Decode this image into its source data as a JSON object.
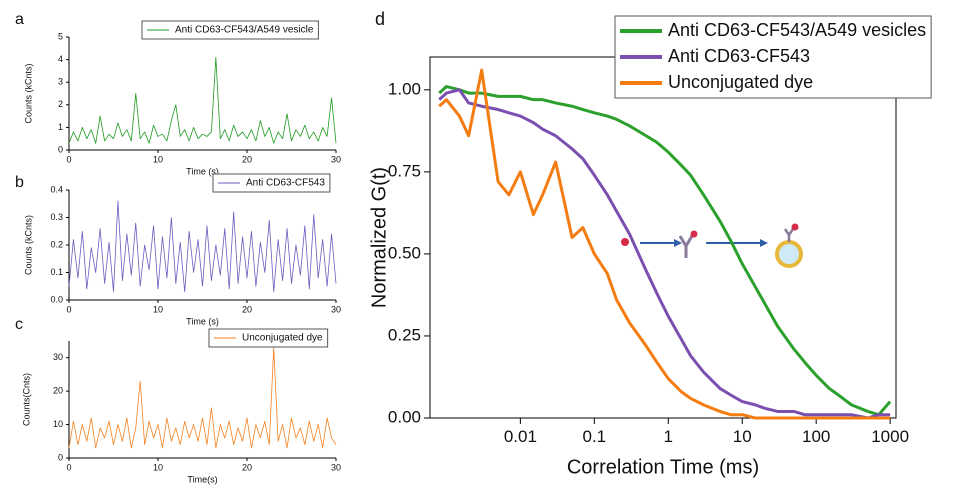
{
  "chart_data": [
    {
      "type": "line",
      "panel_label": "a",
      "x_label": "Time (s)",
      "y_label": "Counts (kCnts)",
      "xlim": [
        0,
        30
      ],
      "xticks": [
        0,
        10,
        20,
        30
      ],
      "ylim": [
        0,
        5
      ],
      "yticks": [
        0,
        1,
        2,
        3,
        4,
        5
      ],
      "x": [
        0,
        0.5,
        1,
        1.5,
        2,
        2.5,
        3,
        3.5,
        4,
        4.5,
        5,
        5.5,
        6,
        6.5,
        7,
        7.5,
        8,
        8.5,
        9,
        9.5,
        10,
        10.5,
        11,
        11.5,
        12,
        12.5,
        13,
        13.5,
        14,
        14.5,
        15,
        15.5,
        16,
        16.5,
        17,
        17.5,
        18,
        18.5,
        19,
        19.5,
        20,
        20.5,
        21,
        21.5,
        22,
        22.5,
        23,
        23.5,
        24,
        24.5,
        25,
        25.5,
        26,
        26.5,
        27,
        27.5,
        28,
        28.5,
        29,
        29.5,
        30
      ],
      "series": [
        {
          "name": "Anti CD63-CF543/A549 vesicle",
          "color": "#1f9a1f",
          "values": [
            0.3,
            0.8,
            0.4,
            1.0,
            0.5,
            0.9,
            0.3,
            1.5,
            0.4,
            0.7,
            0.5,
            1.2,
            0.6,
            0.9,
            0.4,
            2.5,
            0.5,
            0.8,
            0.3,
            1.1,
            0.6,
            0.7,
            0.4,
            1.3,
            2.0,
            0.6,
            0.9,
            0.4,
            1.0,
            0.5,
            0.7,
            0.6,
            0.8,
            4.1,
            0.5,
            0.9,
            0.4,
            1.1,
            0.6,
            0.8,
            0.5,
            0.9,
            0.4,
            1.3,
            0.6,
            1.0,
            0.3,
            0.8,
            0.5,
            1.6,
            0.4,
            0.9,
            0.6,
            1.1,
            0.5,
            0.8,
            0.4,
            1.0,
            0.6,
            2.3,
            0.3
          ]
        }
      ]
    },
    {
      "type": "line",
      "panel_label": "b",
      "x_label": "Time (s)",
      "y_label": "Counts (kCnts)",
      "xlim": [
        0,
        30
      ],
      "xticks": [
        0,
        10,
        20,
        30
      ],
      "ylim": [
        0,
        0.4
      ],
      "yticks": [
        {
          "value": 0,
          "label": "0.0"
        },
        0.1,
        0.2,
        0.3,
        0.4
      ],
      "x": [
        0,
        0.5,
        1,
        1.5,
        2,
        2.5,
        3,
        3.5,
        4,
        4.5,
        5,
        5.5,
        6,
        6.5,
        7,
        7.5,
        8,
        8.5,
        9,
        9.5,
        10,
        10.5,
        11,
        11.5,
        12,
        12.5,
        13,
        13.5,
        14,
        14.5,
        15,
        15.5,
        16,
        16.5,
        17,
        17.5,
        18,
        18.5,
        19,
        19.5,
        20,
        20.5,
        21,
        21.5,
        22,
        22.5,
        23,
        23.5,
        24,
        24.5,
        25,
        25.5,
        26,
        26.5,
        27,
        27.5,
        28,
        28.5,
        29,
        29.5,
        30
      ],
      "series": [
        {
          "name": "Anti CD63-CF543",
          "color": "#6a5cc0",
          "values": [
            0.05,
            0.22,
            0.08,
            0.25,
            0.04,
            0.19,
            0.1,
            0.26,
            0.06,
            0.21,
            0.03,
            0.36,
            0.07,
            0.24,
            0.09,
            0.28,
            0.05,
            0.2,
            0.11,
            0.27,
            0.04,
            0.23,
            0.08,
            0.3,
            0.06,
            0.21,
            0.03,
            0.25,
            0.1,
            0.22,
            0.05,
            0.27,
            0.07,
            0.2,
            0.09,
            0.26,
            0.04,
            0.32,
            0.06,
            0.23,
            0.08,
            0.25,
            0.05,
            0.21,
            0.1,
            0.29,
            0.03,
            0.22,
            0.07,
            0.26,
            0.06,
            0.2,
            0.09,
            0.27,
            0.04,
            0.31,
            0.08,
            0.22,
            0.05,
            0.24,
            0.06
          ]
        }
      ]
    },
    {
      "type": "line",
      "panel_label": "c",
      "x_label": "Time(s)",
      "y_label": "Counts(Cnts)",
      "xlim": [
        0,
        30
      ],
      "xticks": [
        0,
        10,
        20,
        30
      ],
      "ylim": [
        0,
        35
      ],
      "yticks": [
        0,
        10,
        20,
        30
      ],
      "x": [
        0,
        0.5,
        1,
        1.5,
        2,
        2.5,
        3,
        3.5,
        4,
        4.5,
        5,
        5.5,
        6,
        6.5,
        7,
        7.5,
        8,
        8.5,
        9,
        9.5,
        10,
        10.5,
        11,
        11.5,
        12,
        12.5,
        13,
        13.5,
        14,
        14.5,
        15,
        15.5,
        16,
        16.5,
        17,
        17.5,
        18,
        18.5,
        19,
        19.5,
        20,
        20.5,
        21,
        21.5,
        22,
        22.5,
        23,
        23.5,
        24,
        24.5,
        25,
        25.5,
        26,
        26.5,
        27,
        27.5,
        28,
        28.5,
        29,
        29.5,
        30
      ],
      "series": [
        {
          "name": "Unconjugated dye",
          "color": "#f58220",
          "values": [
            3,
            11,
            4,
            10,
            5,
            12,
            3,
            9,
            6,
            11,
            4,
            10,
            5,
            12,
            3,
            9,
            23,
            4,
            11,
            6,
            10,
            3,
            12,
            5,
            9,
            4,
            11,
            6,
            10,
            5,
            12,
            4,
            15,
            3,
            10,
            6,
            11,
            4,
            9,
            5,
            12,
            3,
            10,
            6,
            11,
            4,
            33,
            5,
            10,
            3,
            12,
            6,
            9,
            4,
            11,
            5,
            10,
            3,
            12,
            6,
            4
          ]
        }
      ]
    },
    {
      "type": "line",
      "panel_label": "d",
      "x_label": "Correlation Time (ms)",
      "y_label": "Normalized G(t)",
      "x_scale": "log",
      "xlim": [
        0.0006,
        1200
      ],
      "xticks": [
        0.01,
        0.1,
        1,
        10,
        100,
        1000
      ],
      "ylim": [
        0,
        1.1
      ],
      "yticks": [
        {
          "value": 0,
          "label": "0.00"
        },
        {
          "value": 0.25,
          "label": "0.25"
        },
        {
          "value": 0.5,
          "label": "0.50"
        },
        {
          "value": 0.75,
          "label": "0.75"
        },
        {
          "value": 1,
          "label": "1.00"
        }
      ],
      "x": [
        0.0008,
        0.001,
        0.0015,
        0.002,
        0.003,
        0.005,
        0.007,
        0.01,
        0.015,
        0.02,
        0.03,
        0.05,
        0.07,
        0.1,
        0.15,
        0.2,
        0.3,
        0.5,
        0.7,
        1,
        1.5,
        2,
        3,
        5,
        7,
        10,
        15,
        20,
        30,
        50,
        70,
        100,
        150,
        200,
        300,
        500,
        700,
        1000
      ],
      "series": [
        {
          "name": "Anti CD63-CF543/A549 vesicles",
          "color": "#2ca02c",
          "values": [
            0.99,
            1.01,
            1.0,
            0.99,
            0.99,
            0.98,
            0.98,
            0.98,
            0.97,
            0.97,
            0.96,
            0.95,
            0.94,
            0.93,
            0.92,
            0.91,
            0.89,
            0.86,
            0.84,
            0.81,
            0.77,
            0.74,
            0.68,
            0.6,
            0.54,
            0.47,
            0.4,
            0.35,
            0.28,
            0.21,
            0.17,
            0.13,
            0.09,
            0.07,
            0.04,
            0.02,
            0.01,
            0.05
          ]
        },
        {
          "name": "Anti CD63-CF543",
          "color": "#7b4fb0",
          "values": [
            0.97,
            0.99,
            1.0,
            0.96,
            0.95,
            0.94,
            0.93,
            0.92,
            0.9,
            0.88,
            0.86,
            0.82,
            0.79,
            0.74,
            0.68,
            0.63,
            0.56,
            0.45,
            0.38,
            0.31,
            0.24,
            0.19,
            0.14,
            0.09,
            0.07,
            0.05,
            0.04,
            0.03,
            0.02,
            0.02,
            0.01,
            0.01,
            0.01,
            0.01,
            0.01,
            0,
            0.01,
            0.01
          ]
        },
        {
          "name": "Unconjugated dye",
          "color": "#f57c10",
          "values": [
            0.95,
            0.97,
            0.92,
            0.86,
            1.06,
            0.72,
            0.68,
            0.75,
            0.62,
            0.68,
            0.78,
            0.55,
            0.58,
            0.5,
            0.44,
            0.36,
            0.29,
            0.22,
            0.17,
            0.12,
            0.08,
            0.06,
            0.04,
            0.02,
            0.01,
            0.01,
            0,
            0,
            0,
            0,
            0,
            0,
            0,
            0,
            0,
            0,
            0,
            0
          ]
        }
      ]
    }
  ]
}
